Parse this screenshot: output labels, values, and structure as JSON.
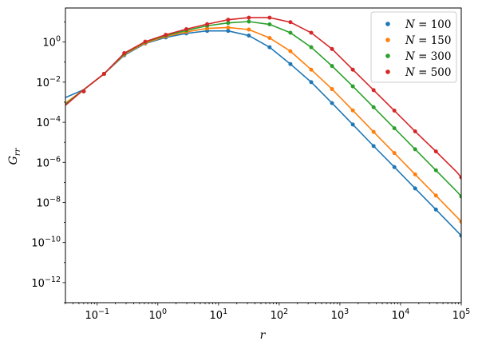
{
  "chart_data": {
    "type": "line",
    "title": "",
    "xlabel": "r",
    "ylabel_main": "G",
    "ylabel_sub": "rr",
    "xscale": "log",
    "yscale": "log",
    "xlim": [
      0.03,
      100000
    ],
    "ylim": [
      1e-13,
      50
    ],
    "grid": false,
    "legend_position": "top-right",
    "x_ticks": [
      {
        "value": 0.1,
        "base": "10",
        "exp": "−1"
      },
      {
        "value": 1,
        "base": "10",
        "exp": "0"
      },
      {
        "value": 10,
        "base": "10",
        "exp": "1"
      },
      {
        "value": 100,
        "base": "10",
        "exp": "2"
      },
      {
        "value": 1000,
        "base": "10",
        "exp": "3"
      },
      {
        "value": 10000,
        "base": "10",
        "exp": "4"
      },
      {
        "value": 100000,
        "base": "10",
        "exp": "5"
      }
    ],
    "y_ticks": [
      {
        "value": 1e-12,
        "base": "10",
        "exp": "−12"
      },
      {
        "value": 1e-10,
        "base": "10",
        "exp": "−10"
      },
      {
        "value": 1e-08,
        "base": "10",
        "exp": "−8"
      },
      {
        "value": 1e-06,
        "base": "10",
        "exp": "−6"
      },
      {
        "value": 0.0001,
        "base": "10",
        "exp": "−4"
      },
      {
        "value": 0.01,
        "base": "10",
        "exp": "−2"
      },
      {
        "value": 1,
        "base": "10",
        "exp": "0"
      }
    ],
    "series": [
      {
        "name": "N = 100",
        "legend_prefix": "N",
        "legend_value": " = 100",
        "color": "#1f77b4",
        "line_x": [
          0.03,
          0.06,
          0.13,
          0.28,
          0.62,
          1.35,
          2.95,
          6.5,
          14.4,
          31.6,
          69.5,
          153,
          337,
          742,
          1634,
          3594,
          7906,
          17400,
          38300,
          84100,
          100000
        ],
        "line_y": [
          0.0017,
          0.0042,
          0.026,
          0.22,
          0.85,
          1.7,
          2.7,
          3.6,
          3.6,
          2.1,
          0.55,
          0.08,
          0.01,
          0.0009,
          7.7e-05,
          6.5e-06,
          5.8e-07,
          5e-08,
          4.4e-09,
          3.8e-10,
          2.2e-10
        ],
        "marker_x": [
          0.06,
          0.13,
          0.28,
          0.62,
          1.35,
          2.95,
          6.5,
          14.4,
          31.6,
          69.5,
          153,
          337,
          742,
          1634,
          3594,
          7906,
          17400,
          38300,
          100000
        ],
        "marker_y": [
          0.0035,
          0.026,
          0.22,
          0.85,
          1.7,
          2.7,
          3.6,
          3.6,
          2.1,
          0.55,
          0.08,
          0.01,
          0.0009,
          7.7e-05,
          6.5e-06,
          5.8e-07,
          5e-08,
          4.4e-09,
          2.2e-10
        ]
      },
      {
        "name": "N = 150",
        "legend_prefix": "N",
        "legend_value": " = 150",
        "color": "#ff7f0e",
        "line_x": [
          0.03,
          0.06,
          0.13,
          0.28,
          0.62,
          1.35,
          2.95,
          6.5,
          14.4,
          31.6,
          69.5,
          153,
          337,
          742,
          1634,
          3594,
          7906,
          17400,
          38300,
          84100,
          100000
        ],
        "line_y": [
          0.0009,
          0.0042,
          0.026,
          0.24,
          0.9,
          1.9,
          3.2,
          4.8,
          5.3,
          4.2,
          1.6,
          0.35,
          0.042,
          0.0045,
          0.00039,
          3.3e-05,
          2.9e-06,
          2.5e-07,
          2.2e-08,
          1.9e-09,
          1.1e-09
        ],
        "marker_x": [
          0.06,
          0.13,
          0.28,
          0.62,
          1.35,
          2.95,
          6.5,
          14.4,
          31.6,
          69.5,
          153,
          337,
          742,
          1634,
          3594,
          7906,
          17400,
          38300,
          100000
        ],
        "marker_y": [
          0.0035,
          0.026,
          0.24,
          0.9,
          1.9,
          3.2,
          4.8,
          5.3,
          4.2,
          1.6,
          0.35,
          0.042,
          0.0045,
          0.00039,
          3.3e-05,
          2.9e-06,
          2.5e-07,
          2.2e-08,
          1.1e-09
        ]
      },
      {
        "name": "N = 300",
        "legend_prefix": "N",
        "legend_value": " = 300",
        "color": "#2ca02c",
        "line_x": [
          0.03,
          0.06,
          0.13,
          0.28,
          0.62,
          1.35,
          2.95,
          6.5,
          14.4,
          31.6,
          69.5,
          153,
          337,
          742,
          1634,
          3594,
          7906,
          17400,
          38300,
          84100,
          100000
        ],
        "line_y": [
          0.0008,
          0.0042,
          0.026,
          0.26,
          1.0,
          2.1,
          3.8,
          6.5,
          9.0,
          10.5,
          7.6,
          2.9,
          0.55,
          0.064,
          0.0062,
          0.00056,
          5e-05,
          4.5e-06,
          4e-07,
          3.6e-08,
          2e-08
        ],
        "marker_x": [
          0.06,
          0.13,
          0.28,
          0.62,
          1.35,
          2.95,
          6.5,
          14.4,
          31.6,
          69.5,
          153,
          337,
          742,
          1634,
          3594,
          7906,
          17400,
          38300,
          100000
        ],
        "marker_y": [
          0.0035,
          0.026,
          0.26,
          1.0,
          2.1,
          3.8,
          6.5,
          9.0,
          10.5,
          7.6,
          2.9,
          0.55,
          0.064,
          0.0062,
          0.00056,
          5e-05,
          4.5e-06,
          4e-07,
          2e-08
        ]
      },
      {
        "name": "N = 500",
        "legend_prefix": "N",
        "legend_value": " = 500",
        "color": "#d62728",
        "line_x": [
          0.03,
          0.06,
          0.13,
          0.28,
          0.62,
          1.35,
          2.95,
          6.5,
          14.4,
          31.6,
          69.5,
          153,
          337,
          742,
          1634,
          3594,
          7906,
          17400,
          38300,
          84100,
          100000
        ],
        "line_y": [
          0.0007,
          0.0042,
          0.026,
          0.28,
          1.05,
          2.3,
          4.4,
          7.8,
          13.0,
          16.5,
          16.5,
          9.8,
          2.9,
          0.45,
          0.042,
          0.004,
          0.00038,
          3.5e-05,
          3.5e-06,
          3.3e-07,
          1.8e-07
        ],
        "marker_x": [
          0.06,
          0.13,
          0.28,
          0.62,
          1.35,
          2.95,
          6.5,
          14.4,
          31.6,
          69.5,
          153,
          337,
          742,
          1634,
          3594,
          7906,
          17400,
          38300,
          100000
        ],
        "marker_y": [
          0.0035,
          0.026,
          0.28,
          1.05,
          2.3,
          4.4,
          7.8,
          13.0,
          16.5,
          16.5,
          9.8,
          2.9,
          0.45,
          0.042,
          0.004,
          0.00038,
          3.5e-05,
          3.5e-06,
          1.8e-07
        ]
      }
    ]
  }
}
